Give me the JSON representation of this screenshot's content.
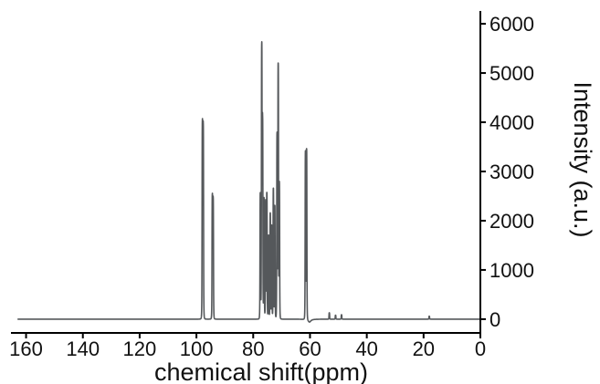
{
  "chart_data": {
    "type": "line",
    "title": "",
    "xlabel": "chemical shift(ppm)",
    "ylabel": "Intensity (a.u.)",
    "x_reversed": true,
    "xlim": [
      165,
      0
    ],
    "ylim": [
      -150,
      6150
    ],
    "x_ticks": [
      160,
      140,
      120,
      100,
      80,
      60,
      40,
      20,
      0
    ],
    "y_ticks": [
      0,
      1000,
      2000,
      3000,
      4000,
      5000,
      6000
    ],
    "y_axis_side": "right",
    "grid": false,
    "line_color": "#55585b",
    "baseline": 0,
    "peaks": [
      {
        "x": 97.9,
        "y": 3950
      },
      {
        "x": 97.6,
        "y": 3900
      },
      {
        "x": 94.4,
        "y": 2480
      },
      {
        "x": 94.1,
        "y": 2420
      },
      {
        "x": 77.5,
        "y": 2550
      },
      {
        "x": 77.0,
        "y": 5500
      },
      {
        "x": 76.7,
        "y": 4000
      },
      {
        "x": 76.2,
        "y": 2450
      },
      {
        "x": 75.6,
        "y": 2400
      },
      {
        "x": 75.2,
        "y": 2550
      },
      {
        "x": 74.6,
        "y": 1700
      },
      {
        "x": 74.0,
        "y": 2150
      },
      {
        "x": 73.5,
        "y": 1900
      },
      {
        "x": 72.9,
        "y": 2650
      },
      {
        "x": 72.4,
        "y": 2300
      },
      {
        "x": 71.6,
        "y": 3750
      },
      {
        "x": 71.2,
        "y": 5150
      },
      {
        "x": 70.8,
        "y": 2750
      },
      {
        "x": 61.6,
        "y": 3400
      },
      {
        "x": 61.2,
        "y": 3450
      },
      {
        "x": 53.2,
        "y": 130
      },
      {
        "x": 51.0,
        "y": 80
      },
      {
        "x": 48.9,
        "y": 90
      },
      {
        "x": 18.0,
        "y": 60
      }
    ]
  }
}
